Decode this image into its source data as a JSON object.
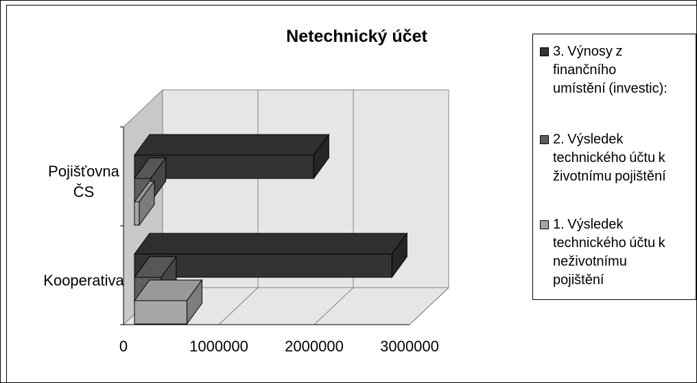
{
  "chart_data": {
    "type": "bar",
    "orientation": "horizontal",
    "style": "3d",
    "title": "Netechnický účet",
    "categories": [
      "Kooperativa",
      "Pojišťovna ČS"
    ],
    "category_labels": [
      "Kooperativa",
      "Pojišťovna\nČS"
    ],
    "series": [
      {
        "name": "1. Výsledek technického účtu k neživotnímu pojištění",
        "label": "1. Výsledek\ntechnického účtu k\nneživotnímu\npojištění",
        "color": "#a6a6a6",
        "values": [
          550000,
          50000
        ]
      },
      {
        "name": "2. Výsledek technického účtu k životnímu pojištění",
        "label": "2. Výsledek\ntechnického účtu k\nživotnímu pojištění",
        "color": "#5f5f5f",
        "values": [
          280000,
          170000
        ]
      },
      {
        "name": "3. Výnosy z finančního umístění (investic):",
        "label": "3. Výnosy z\nfinančního\numístění (investic):",
        "color": "#333333",
        "values": [
          2700000,
          1880000
        ]
      }
    ],
    "x_ticks": [
      "0",
      "1000000",
      "2000000",
      "3000000"
    ],
    "xlim": [
      0,
      3000000
    ],
    "grid": true,
    "legend": "right"
  }
}
